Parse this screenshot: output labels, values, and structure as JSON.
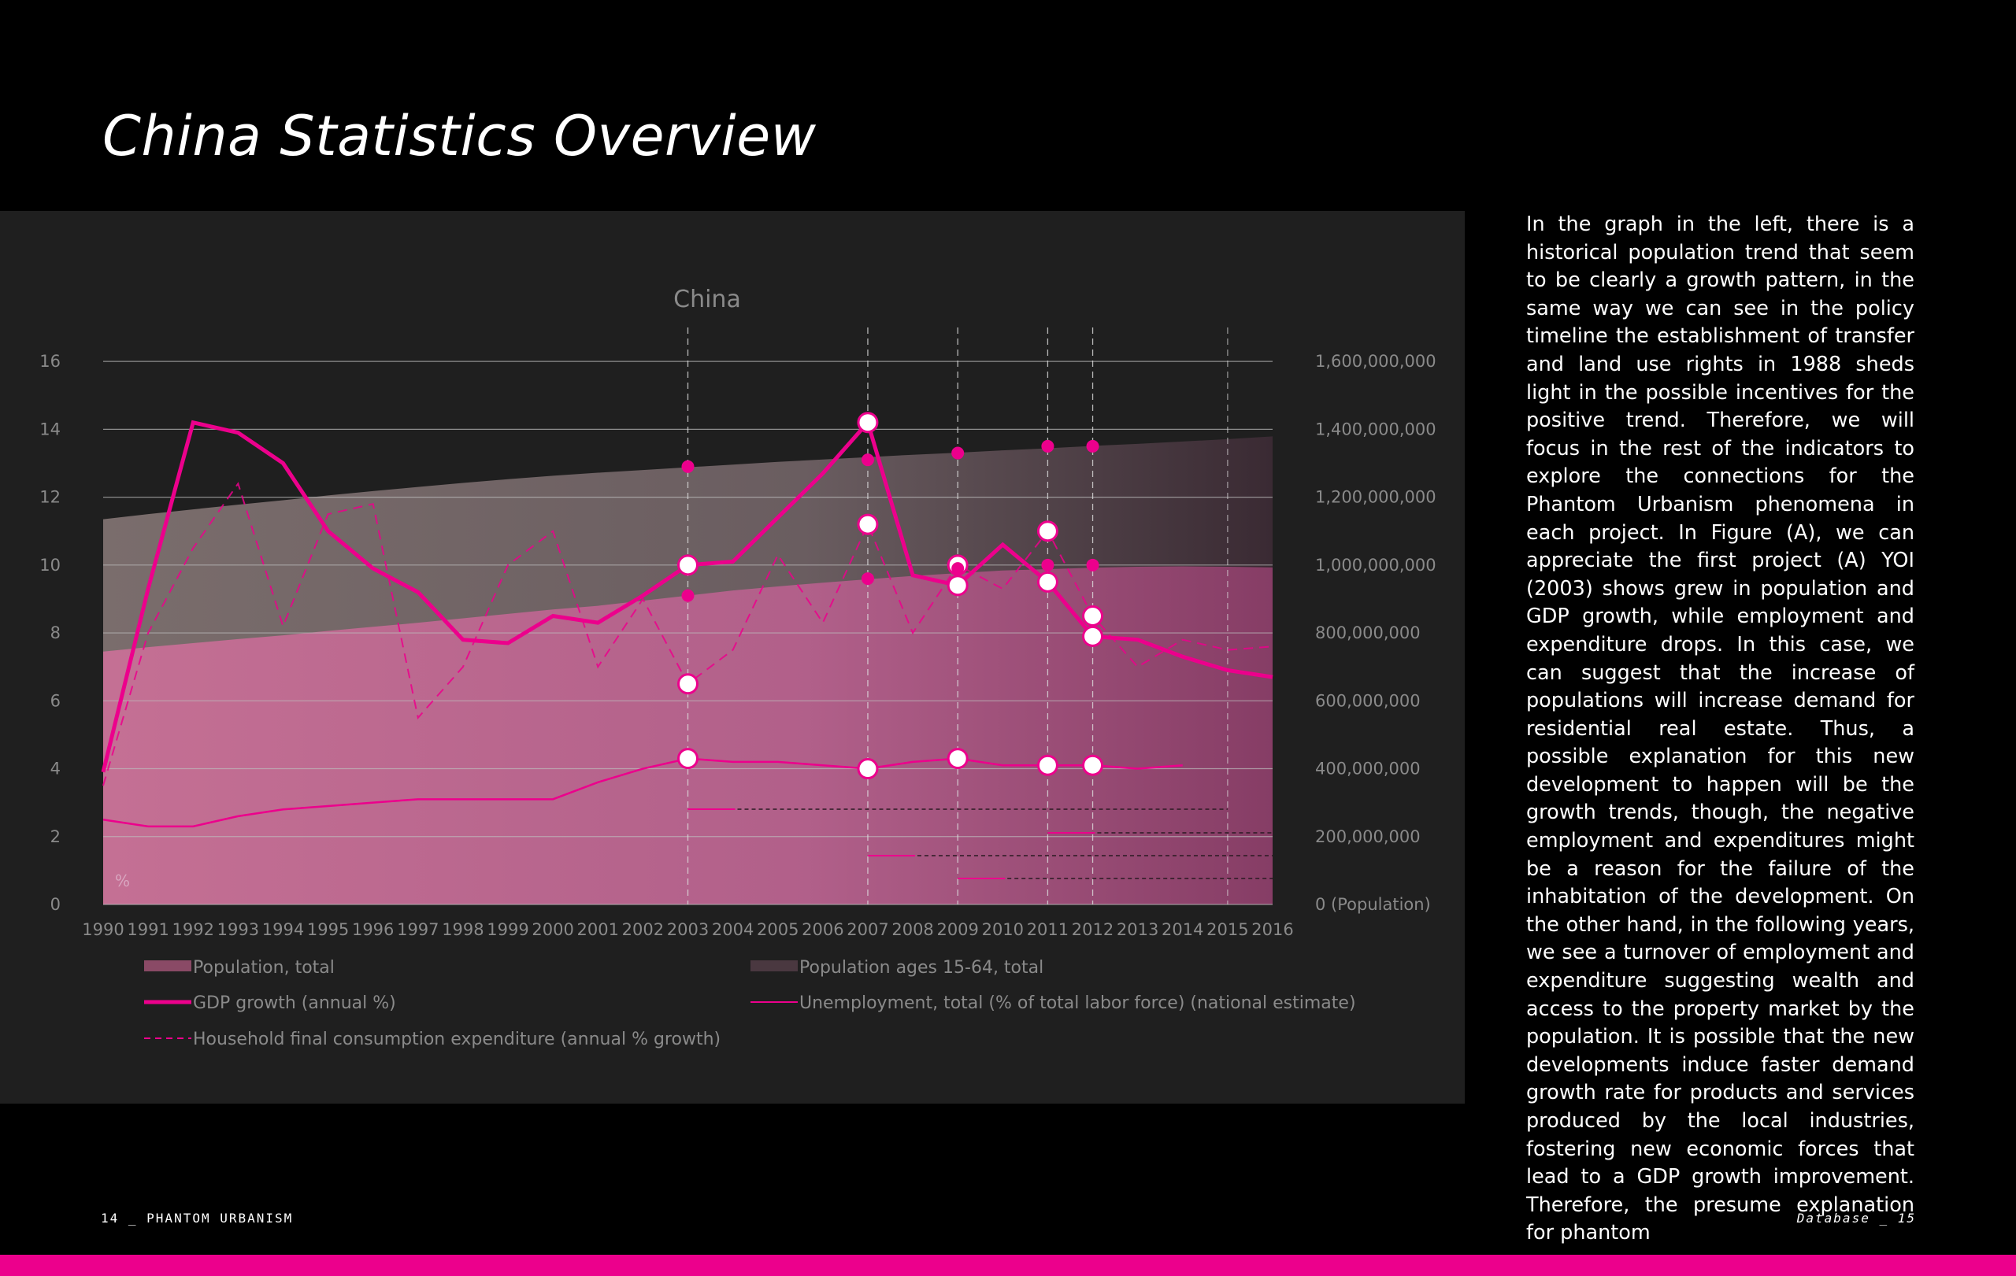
{
  "page": {
    "title": "China Statistics Overview",
    "footer_left": "14  _ PHANTOM URBANISM",
    "footer_right": "Database  _  15",
    "accent_color": "#ec008c"
  },
  "body_text": "In the graph in the left, there is a historical population trend that seem to be clearly a growth pattern, in the same way we can see in the policy timeline the establishment of transfer and land use rights in 1988 sheds light in the possible incentives for the positive trend. Therefore, we will focus in the rest of the indicators to explore the connections for the Phantom Urbanism phenomena in each project. In Figure (A), we can appreciate the first project (A) YOI (2003) shows grew in population and GDP growth, while employment and expenditure drops. In this case, we can suggest that the increase of populations will increase demand for residential real estate. Thus, a possible explanation for this new development to happen will be the growth trends, though, the negative employment and expenditures might be a reason for the failure of the inhabitation of the development. On the other hand, in the following years, we see a turnover of employment and expenditure suggesting wealth and access to the property market by the population. It is possible that the new developments induce faster demand growth rate for products and services produced by the local industries, fostering new economic forces that lead to a GDP growth improvement. Therefore, the presume explanation for phantom",
  "chart_data": {
    "type": "line",
    "title": "China",
    "left_axis": {
      "ticks": [
        "0",
        "2",
        "4",
        "6",
        "8",
        "10",
        "12",
        "14",
        "16"
      ],
      "unit_label": "%",
      "range": [
        0,
        17
      ]
    },
    "right_axis": {
      "ticks": [
        "0 (Population)",
        "200,000,000",
        "400,000,000",
        "600,000,000",
        "800,000,000",
        "1,000,000,000",
        "1,200,000,000",
        "1,400,000,000",
        "1,600,000,000"
      ],
      "range": [
        0,
        1700000000
      ]
    },
    "x": [
      "1990",
      "1991",
      "1992",
      "1993",
      "1994",
      "1995",
      "1996",
      "1997",
      "1998",
      "1999",
      "2000",
      "2001",
      "2002",
      "2003",
      "2004",
      "2005",
      "2006",
      "2007",
      "2008",
      "2009",
      "2010",
      "2011",
      "2012",
      "2013",
      "2014",
      "2015",
      "2016"
    ],
    "series": [
      {
        "name": "Population, total",
        "kind": "area",
        "axis": "right",
        "color": "#c0668f",
        "values": [
          1135000000,
          1150000000,
          1164000000,
          1178000000,
          1191000000,
          1205000000,
          1218000000,
          1230000000,
          1242000000,
          1253000000,
          1263000000,
          1272000000,
          1280000000,
          1288000000,
          1296000000,
          1304000000,
          1311000000,
          1318000000,
          1325000000,
          1331000000,
          1338000000,
          1344000000,
          1351000000,
          1357000000,
          1364000000,
          1371000000,
          1379000000
        ]
      },
      {
        "name": "Population ages 15-64, total",
        "kind": "area",
        "axis": "right",
        "color": "#d478a6",
        "values": [
          745000000,
          758000000,
          770000000,
          782000000,
          793000000,
          806000000,
          818000000,
          830000000,
          843000000,
          856000000,
          869000000,
          880000000,
          895000000,
          910000000,
          925000000,
          937000000,
          948000000,
          958000000,
          968000000,
          976000000,
          984000000,
          988000000,
          992000000,
          995000000,
          996000000,
          995000000,
          993000000
        ]
      },
      {
        "name": "GDP growth (annual %)",
        "kind": "line",
        "axis": "left",
        "color": "#ec008c",
        "values": [
          3.9,
          9.3,
          14.2,
          13.9,
          13.0,
          11.0,
          9.9,
          9.2,
          7.8,
          7.7,
          8.5,
          8.3,
          9.1,
          10.0,
          10.1,
          11.4,
          12.7,
          14.2,
          9.7,
          9.4,
          10.6,
          9.5,
          7.9,
          7.8,
          7.3,
          6.9,
          6.7
        ]
      },
      {
        "name": "Unemployment, total (% of total labor force) (national estimate)",
        "kind": "line",
        "axis": "left",
        "color": "#ec008c",
        "values": [
          2.5,
          2.3,
          2.3,
          2.6,
          2.8,
          2.9,
          3.0,
          3.1,
          3.1,
          3.1,
          3.1,
          3.6,
          4.0,
          4.3,
          4.2,
          4.2,
          4.1,
          4.0,
          4.2,
          4.3,
          4.1,
          4.1,
          4.1,
          4.0,
          4.1,
          null,
          null
        ]
      },
      {
        "name": "Household final consumption expenditure (annual % growth)",
        "kind": "dashed",
        "axis": "left",
        "color": "#ec008c",
        "values": [
          3.5,
          8.0,
          10.5,
          12.4,
          8.2,
          11.5,
          11.8,
          5.5,
          7.0,
          10.0,
          11.0,
          7.0,
          9.0,
          6.5,
          7.5,
          10.3,
          8.3,
          11.2,
          8.0,
          10.0,
          9.3,
          11.0,
          8.5,
          7.0,
          7.8,
          7.5,
          7.6
        ]
      }
    ],
    "highlight_years": [
      "2003",
      "2007",
      "2009",
      "2011",
      "2012"
    ],
    "legend": [
      "Population, total",
      "Population ages 15-64, total",
      "GDP growth (annual %)",
      "Unemployment, total (% of total labor force) (national estimate)",
      "Household final consumption expenditure (annual % growth)"
    ]
  }
}
